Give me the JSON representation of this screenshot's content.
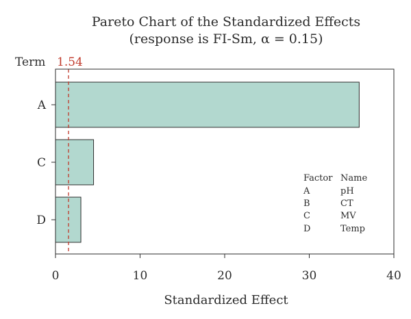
{
  "chart_data": {
    "type": "bar",
    "orientation": "horizontal",
    "title": "Pareto Chart of the Standardized Effects",
    "subtitle": "(response is FI-Sm, α = 0.15)",
    "xlabel": "Standardized Effect",
    "ylabel": "Term",
    "categories": [
      "A",
      "C",
      "D"
    ],
    "values": [
      35.9,
      4.5,
      3.0
    ],
    "xlim": [
      0,
      40
    ],
    "xticks": [
      "0",
      "10",
      "20",
      "30",
      "40"
    ],
    "reference_line": {
      "value": 1.54,
      "label": "1.54",
      "color": "#c0392b"
    },
    "bar_color": "#b2d8cf",
    "bar_edge_color": "#2b2b2b",
    "grid": false,
    "legend": {
      "placement": "bottom-right",
      "header": [
        "Factor",
        "Name"
      ],
      "rows": [
        [
          "A",
          "pH"
        ],
        [
          "B",
          "CT"
        ],
        [
          "C",
          "MV"
        ],
        [
          "D",
          "Temp"
        ]
      ]
    }
  }
}
